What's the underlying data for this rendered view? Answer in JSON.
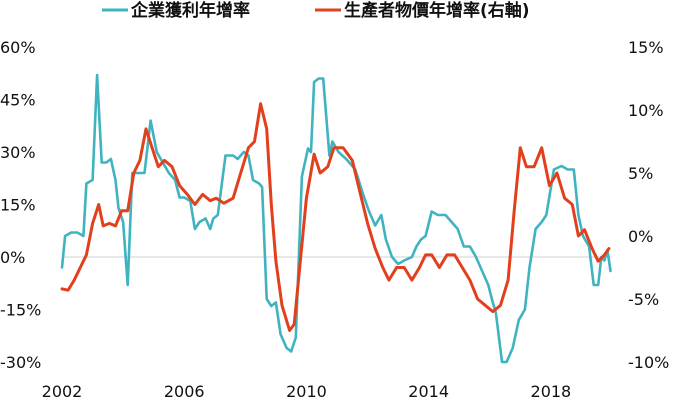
{
  "chart_data": {
    "type": "line",
    "legend": [
      {
        "name": "企業獲利年增率",
        "color": "#3fb3c0",
        "axis": "left"
      },
      {
        "name": "生產者物價年增率(右軸)",
        "color": "#e2401c",
        "axis": "right"
      }
    ],
    "x_ticks": [
      "2002",
      "2006",
      "2010",
      "2014",
      "2018"
    ],
    "y_left_ticks": [
      "60%",
      "45%",
      "30%",
      "15%",
      "0%",
      "-15%",
      "-30%"
    ],
    "y_right_ticks": [
      "15%",
      "10%",
      "5%",
      "0%",
      "-5%",
      "-10%"
    ],
    "y_left_range": [
      -30,
      60
    ],
    "y_right_range": [
      -10,
      15
    ],
    "x_range": [
      2002,
      2020
    ],
    "series": [
      {
        "name": "企業獲利年增率",
        "axis": "left",
        "color": "#3fb3c0",
        "points": [
          [
            2002.0,
            -3
          ],
          [
            2002.1,
            6
          ],
          [
            2002.3,
            7
          ],
          [
            2002.5,
            7
          ],
          [
            2002.7,
            6
          ],
          [
            2002.8,
            21
          ],
          [
            2003.0,
            22
          ],
          [
            2003.15,
            52
          ],
          [
            2003.3,
            27
          ],
          [
            2003.45,
            27
          ],
          [
            2003.6,
            28
          ],
          [
            2003.75,
            22
          ],
          [
            2003.85,
            14
          ],
          [
            2004.0,
            10
          ],
          [
            2004.15,
            -8
          ],
          [
            2004.3,
            24
          ],
          [
            2004.5,
            24
          ],
          [
            2004.7,
            24
          ],
          [
            2004.9,
            39
          ],
          [
            2005.1,
            30
          ],
          [
            2005.3,
            27
          ],
          [
            2005.5,
            24
          ],
          [
            2005.7,
            22
          ],
          [
            2005.85,
            17
          ],
          [
            2006.0,
            17
          ],
          [
            2006.2,
            16
          ],
          [
            2006.35,
            8
          ],
          [
            2006.5,
            10
          ],
          [
            2006.7,
            11
          ],
          [
            2006.85,
            8
          ],
          [
            2006.95,
            11
          ],
          [
            2007.1,
            12
          ],
          [
            2007.35,
            29
          ],
          [
            2007.6,
            29
          ],
          [
            2007.75,
            28
          ],
          [
            2007.95,
            30
          ],
          [
            2008.1,
            29
          ],
          [
            2008.25,
            22
          ],
          [
            2008.45,
            21
          ],
          [
            2008.55,
            20
          ],
          [
            2008.7,
            -12
          ],
          [
            2008.85,
            -14
          ],
          [
            2009.0,
            -13
          ],
          [
            2009.15,
            -22
          ],
          [
            2009.35,
            -26
          ],
          [
            2009.5,
            -27
          ],
          [
            2009.65,
            -23
          ],
          [
            2009.85,
            23
          ],
          [
            2010.05,
            31
          ],
          [
            2010.15,
            30
          ],
          [
            2010.25,
            50
          ],
          [
            2010.4,
            51
          ],
          [
            2010.55,
            51
          ],
          [
            2010.75,
            29
          ],
          [
            2010.85,
            33
          ],
          [
            2011.05,
            30
          ],
          [
            2011.3,
            28
          ],
          [
            2011.6,
            25
          ],
          [
            2011.85,
            18
          ],
          [
            2012.05,
            13
          ],
          [
            2012.25,
            9
          ],
          [
            2012.45,
            12
          ],
          [
            2012.6,
            5
          ],
          [
            2012.8,
            0
          ],
          [
            2013.0,
            -2
          ],
          [
            2013.2,
            -1
          ],
          [
            2013.45,
            0
          ],
          [
            2013.6,
            3
          ],
          [
            2013.75,
            5
          ],
          [
            2013.9,
            6
          ],
          [
            2014.1,
            13
          ],
          [
            2014.3,
            12
          ],
          [
            2014.55,
            12
          ],
          [
            2014.75,
            10
          ],
          [
            2014.95,
            8
          ],
          [
            2015.15,
            3
          ],
          [
            2015.35,
            3
          ],
          [
            2015.55,
            0
          ],
          [
            2015.75,
            -4
          ],
          [
            2015.95,
            -8
          ],
          [
            2016.1,
            -13
          ],
          [
            2016.2,
            -16
          ],
          [
            2016.4,
            -30
          ],
          [
            2016.55,
            -30
          ],
          [
            2016.75,
            -26
          ],
          [
            2016.95,
            -18
          ],
          [
            2017.15,
            -15
          ],
          [
            2017.3,
            -3
          ],
          [
            2017.5,
            8
          ],
          [
            2017.7,
            10
          ],
          [
            2017.85,
            12
          ],
          [
            2018.1,
            25
          ],
          [
            2018.35,
            26
          ],
          [
            2018.55,
            25
          ],
          [
            2018.75,
            25
          ],
          [
            2018.9,
            12
          ],
          [
            2019.05,
            6
          ],
          [
            2019.25,
            3
          ],
          [
            2019.4,
            -8
          ],
          [
            2019.55,
            -8
          ],
          [
            2019.65,
            0
          ],
          [
            2019.75,
            -1
          ],
          [
            2019.85,
            2
          ],
          [
            2019.95,
            -4
          ]
        ]
      },
      {
        "name": "生產者物價年增率(右軸)",
        "axis": "right",
        "color": "#e2401c",
        "points": [
          [
            2002.0,
            -4.2
          ],
          [
            2002.2,
            -4.3
          ],
          [
            2002.4,
            -3.5
          ],
          [
            2002.6,
            -2.5
          ],
          [
            2002.8,
            -1.5
          ],
          [
            2003.0,
            1.0
          ],
          [
            2003.2,
            2.5
          ],
          [
            2003.35,
            0.8
          ],
          [
            2003.55,
            1.0
          ],
          [
            2003.75,
            0.8
          ],
          [
            2003.95,
            2.0
          ],
          [
            2004.15,
            2.0
          ],
          [
            2004.35,
            5.0
          ],
          [
            2004.55,
            6.0
          ],
          [
            2004.75,
            8.5
          ],
          [
            2004.95,
            7.0
          ],
          [
            2005.15,
            5.5
          ],
          [
            2005.35,
            6.0
          ],
          [
            2005.6,
            5.5
          ],
          [
            2005.85,
            4.0
          ],
          [
            2006.1,
            3.3
          ],
          [
            2006.35,
            2.5
          ],
          [
            2006.6,
            3.3
          ],
          [
            2006.85,
            2.8
          ],
          [
            2007.05,
            3.0
          ],
          [
            2007.3,
            2.6
          ],
          [
            2007.6,
            3.0
          ],
          [
            2007.85,
            5.0
          ],
          [
            2008.1,
            7.0
          ],
          [
            2008.3,
            7.5
          ],
          [
            2008.5,
            10.5
          ],
          [
            2008.7,
            8.5
          ],
          [
            2008.85,
            2.5
          ],
          [
            2009.0,
            -2.0
          ],
          [
            2009.2,
            -5.5
          ],
          [
            2009.45,
            -7.5
          ],
          [
            2009.6,
            -7.0
          ],
          [
            2009.8,
            -2.0
          ],
          [
            2010.0,
            3.0
          ],
          [
            2010.25,
            6.5
          ],
          [
            2010.45,
            5.0
          ],
          [
            2010.7,
            5.5
          ],
          [
            2010.9,
            7.0
          ],
          [
            2011.2,
            7.0
          ],
          [
            2011.5,
            6.0
          ],
          [
            2011.75,
            3.5
          ],
          [
            2012.0,
            1.0
          ],
          [
            2012.25,
            -1.0
          ],
          [
            2012.5,
            -2.5
          ],
          [
            2012.7,
            -3.5
          ],
          [
            2012.95,
            -2.5
          ],
          [
            2013.2,
            -2.5
          ],
          [
            2013.45,
            -3.5
          ],
          [
            2013.7,
            -2.5
          ],
          [
            2013.9,
            -1.5
          ],
          [
            2014.1,
            -1.5
          ],
          [
            2014.35,
            -2.5
          ],
          [
            2014.6,
            -1.5
          ],
          [
            2014.85,
            -1.5
          ],
          [
            2015.1,
            -2.5
          ],
          [
            2015.35,
            -3.5
          ],
          [
            2015.6,
            -5.0
          ],
          [
            2015.85,
            -5.5
          ],
          [
            2016.1,
            -6.0
          ],
          [
            2016.35,
            -5.5
          ],
          [
            2016.6,
            -3.5
          ],
          [
            2016.8,
            2.0
          ],
          [
            2017.0,
            7.0
          ],
          [
            2017.2,
            5.5
          ],
          [
            2017.45,
            5.5
          ],
          [
            2017.7,
            7.0
          ],
          [
            2017.95,
            4.0
          ],
          [
            2018.2,
            5.0
          ],
          [
            2018.45,
            3.0
          ],
          [
            2018.7,
            2.5
          ],
          [
            2018.9,
            0.0
          ],
          [
            2019.1,
            0.5
          ],
          [
            2019.35,
            -1.0
          ],
          [
            2019.55,
            -2.0
          ],
          [
            2019.75,
            -1.5
          ],
          [
            2019.9,
            -1.0
          ]
        ]
      }
    ]
  }
}
